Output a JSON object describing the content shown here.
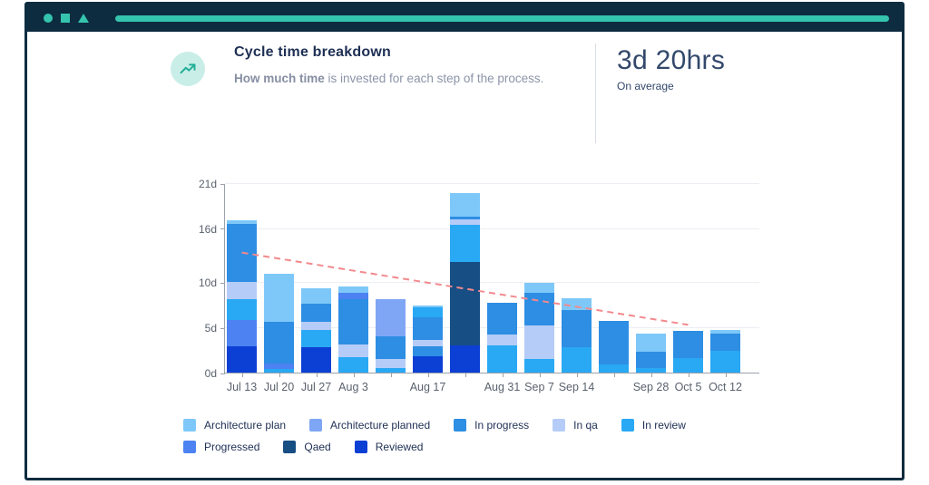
{
  "header": {
    "title": "Cycle time breakdown",
    "subtitle_bold": "How much time",
    "subtitle_rest": " is invested for each step of the process.",
    "stat_value": "3d 20hrs",
    "stat_caption": "On average"
  },
  "window": {
    "accent_color": "#35C4AE",
    "frame_color": "#0D2C3F"
  },
  "chart_data": {
    "type": "bar",
    "stacked": true,
    "title": "Cycle time breakdown",
    "ylabel": "days",
    "ylim": [
      0,
      21
    ],
    "grid": true,
    "legend_position": "bottom",
    "yticks": [
      {
        "value": 0,
        "label": "0d"
      },
      {
        "value": 5,
        "label": "5d"
      },
      {
        "value": 10,
        "label": "10d"
      },
      {
        "value": 16,
        "label": "16d"
      },
      {
        "value": 21,
        "label": "21d"
      }
    ],
    "series": [
      {
        "key": "architecture_plan",
        "label": "Architecture plan",
        "color": "#7EC8F9"
      },
      {
        "key": "architecture_planned",
        "label": "Architecture planned",
        "color": "#7FA6F4"
      },
      {
        "key": "in_progress",
        "label": "In progress",
        "color": "#2D8EE3"
      },
      {
        "key": "in_qa",
        "label": "In qa",
        "color": "#B5CCF8"
      },
      {
        "key": "in_review",
        "label": "In review",
        "color": "#29A8F4"
      },
      {
        "key": "progressed",
        "label": "Progressed",
        "color": "#4C82F1"
      },
      {
        "key": "qaed",
        "label": "Qaed",
        "color": "#174E84"
      },
      {
        "key": "reviewed",
        "label": "Reviewed",
        "color": "#0C3FD4"
      }
    ],
    "legend_row_break": 5,
    "bars": [
      {
        "label": "Jul 13",
        "segments": [
          [
            "reviewed",
            2.9
          ],
          [
            "progressed",
            2.9
          ],
          [
            "in_review",
            2.3
          ],
          [
            "in_qa",
            1.9
          ],
          [
            "in_progress",
            6.5
          ],
          [
            "architecture_plan",
            0.4
          ]
        ]
      },
      {
        "label": "Jul 20",
        "segments": [
          [
            "in_review",
            0.4
          ],
          [
            "progressed",
            0.6
          ],
          [
            "in_progress",
            4.6
          ],
          [
            "architecture_plan",
            5.4
          ]
        ]
      },
      {
        "label": "Jul 27",
        "segments": [
          [
            "reviewed",
            2.8
          ],
          [
            "in_review",
            1.9
          ],
          [
            "in_qa",
            0.9
          ],
          [
            "in_progress",
            2.0
          ],
          [
            "architecture_plan",
            1.7
          ]
        ]
      },
      {
        "label": "Aug 3",
        "segments": [
          [
            "in_review",
            1.7
          ],
          [
            "in_qa",
            1.4
          ],
          [
            "in_progress",
            5.0
          ],
          [
            "progressed",
            0.7
          ],
          [
            "architecture_plan",
            0.7
          ]
        ]
      },
      {
        "label": "",
        "segments": [
          [
            "in_review",
            0.5
          ],
          [
            "in_qa",
            1.0
          ],
          [
            "in_progress",
            2.5
          ],
          [
            "architecture_planned",
            4.1
          ]
        ]
      },
      {
        "label": "Aug 17",
        "segments": [
          [
            "reviewed",
            1.8
          ],
          [
            "in_progress",
            1.1
          ],
          [
            "in_qa",
            0.7
          ],
          [
            "in_progress",
            2.5
          ],
          [
            "in_review",
            1.1
          ],
          [
            "architecture_plan",
            0.2
          ]
        ]
      },
      {
        "label": "",
        "segments": [
          [
            "reviewed",
            3.0
          ],
          [
            "qaed",
            9.3
          ],
          [
            "in_review",
            4.1
          ],
          [
            "in_qa",
            0.6
          ],
          [
            "in_progress",
            0.3
          ],
          [
            "architecture_plan",
            2.6
          ]
        ]
      },
      {
        "label": "Aug 31",
        "segments": [
          [
            "in_review",
            3.0
          ],
          [
            "in_qa",
            1.2
          ],
          [
            "in_progress",
            3.5
          ]
        ]
      },
      {
        "label": "Sep 7",
        "segments": [
          [
            "in_review",
            1.5
          ],
          [
            "in_qa",
            3.7
          ],
          [
            "in_progress",
            3.6
          ],
          [
            "architecture_plan",
            1.1
          ]
        ]
      },
      {
        "label": "Sep 14",
        "segments": [
          [
            "in_review",
            2.8
          ],
          [
            "in_progress",
            4.1
          ],
          [
            "architecture_plan",
            1.3
          ]
        ]
      },
      {
        "label": "",
        "segments": [
          [
            "in_review",
            0.9
          ],
          [
            "in_progress",
            4.8
          ]
        ]
      },
      {
        "label": "Sep 28",
        "segments": [
          [
            "in_review",
            0.5
          ],
          [
            "in_progress",
            1.8
          ],
          [
            "architecture_plan",
            2.0
          ]
        ]
      },
      {
        "label": "Oct 5",
        "segments": [
          [
            "in_review",
            1.6
          ],
          [
            "in_progress",
            3.0
          ]
        ]
      },
      {
        "label": "Oct 12",
        "segments": [
          [
            "in_review",
            2.4
          ],
          [
            "in_progress",
            1.9
          ],
          [
            "architecture_plan",
            0.4
          ]
        ]
      }
    ],
    "trend_line": {
      "style": "dashed",
      "color": "#F2898D",
      "from": {
        "bar_index": 0,
        "value": 13.4
      },
      "to": {
        "bar_index": 12,
        "value": 5.4
      }
    }
  }
}
